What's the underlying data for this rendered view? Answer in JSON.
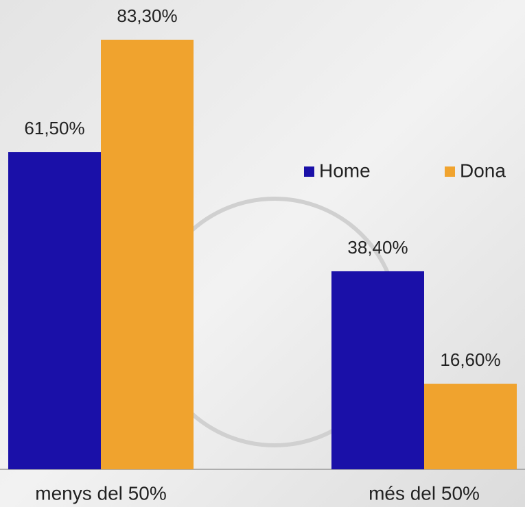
{
  "chart_data": {
    "type": "bar",
    "categories": [
      "menys del 50%",
      "més del 50%"
    ],
    "series": [
      {
        "name": "Home",
        "color": "#1a10a8",
        "values": [
          61.5,
          38.4
        ],
        "value_labels": [
          "61,50%",
          "38,40%"
        ]
      },
      {
        "name": "Dona",
        "color": "#f0a32e",
        "values": [
          83.3,
          16.6
        ],
        "value_labels": [
          "83,30%",
          "16,60%"
        ]
      }
    ],
    "ylim": [
      0,
      91
    ],
    "legend": "right"
  }
}
